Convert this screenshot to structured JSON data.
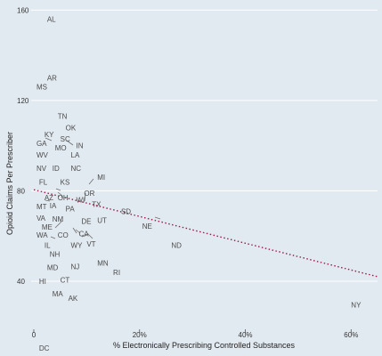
{
  "chart_data": {
    "type": "scatter",
    "title": "",
    "xlabel": "% Electronically Prescribing Controlled Substances",
    "ylabel": "Opioid Claims Per Prescriber",
    "xlim": [
      -0.5,
      65.0
    ],
    "ylim": [
      19.5,
      162.5
    ],
    "x_ticks": [
      0,
      20,
      40,
      60
    ],
    "x_tick_labels": [
      "0",
      "20%",
      "40%",
      "60%"
    ],
    "y_ticks": [
      40,
      80,
      120,
      160
    ],
    "y_tick_labels": [
      "40",
      "80",
      "120",
      "160"
    ],
    "grid": "horizontal",
    "colors": {
      "background": "#e2eaf1",
      "grid": "#ffffff",
      "points": "#4a4a4a",
      "trend": "#9b1b4a"
    },
    "trend_line": {
      "style": "dotted",
      "from": [
        0,
        80.5
      ],
      "to": [
        65,
        42
      ]
    },
    "points": [
      {
        "label": "AL",
        "x": 2.5,
        "y": 156
      },
      {
        "label": "AR",
        "x": 2.5,
        "y": 130
      },
      {
        "label": "MS",
        "x": 0.5,
        "y": 126
      },
      {
        "label": "TN",
        "x": 4.5,
        "y": 113
      },
      {
        "label": "OK",
        "x": 6,
        "y": 108
      },
      {
        "label": "KY",
        "x": 2,
        "y": 105
      },
      {
        "label": "SC",
        "x": 5,
        "y": 103
      },
      {
        "label": "GA",
        "x": 0.5,
        "y": 101
      },
      {
        "label": "IN",
        "x": 8,
        "y": 100
      },
      {
        "label": "MO",
        "x": 4,
        "y": 99
      },
      {
        "label": "WV",
        "x": 0.5,
        "y": 96
      },
      {
        "label": "LA",
        "x": 7,
        "y": 96
      },
      {
        "label": "NV",
        "x": 0.5,
        "y": 90
      },
      {
        "label": "ID",
        "x": 3.5,
        "y": 90
      },
      {
        "label": "NC",
        "x": 7,
        "y": 90
      },
      {
        "label": "MI",
        "x": 12,
        "y": 86
      },
      {
        "label": "FL",
        "x": 1,
        "y": 84
      },
      {
        "label": "KS",
        "x": 5,
        "y": 84
      },
      {
        "label": "OR",
        "x": 9.5,
        "y": 79
      },
      {
        "label": "AZ",
        "x": 2,
        "y": 77
      },
      {
        "label": "OH",
        "x": 4.5,
        "y": 77
      },
      {
        "label": "WI",
        "x": 8,
        "y": 76
      },
      {
        "label": "TX",
        "x": 11,
        "y": 74
      },
      {
        "label": "MT",
        "x": 0.5,
        "y": 73
      },
      {
        "label": "IA",
        "x": 3,
        "y": 73.5
      },
      {
        "label": "PA",
        "x": 6,
        "y": 72
      },
      {
        "label": "SD",
        "x": 16.5,
        "y": 71
      },
      {
        "label": "VA",
        "x": 0.5,
        "y": 68
      },
      {
        "label": "NM",
        "x": 3.5,
        "y": 67.5
      },
      {
        "label": "UT",
        "x": 12,
        "y": 67
      },
      {
        "label": "DE",
        "x": 9,
        "y": 66.5
      },
      {
        "label": "NE",
        "x": 20.5,
        "y": 64.5
      },
      {
        "label": "ME",
        "x": 1.5,
        "y": 64
      },
      {
        "label": "WA",
        "x": 0.5,
        "y": 60.5
      },
      {
        "label": "CO",
        "x": 4.5,
        "y": 60.5
      },
      {
        "label": "CA",
        "x": 8.5,
        "y": 61
      },
      {
        "label": "ND",
        "x": 26,
        "y": 56
      },
      {
        "label": "IL",
        "x": 2,
        "y": 56
      },
      {
        "label": "WY",
        "x": 7,
        "y": 56
      },
      {
        "label": "VT",
        "x": 10,
        "y": 56.5
      },
      {
        "label": "NH",
        "x": 3,
        "y": 52
      },
      {
        "label": "MN",
        "x": 12,
        "y": 48
      },
      {
        "label": "MD",
        "x": 2.5,
        "y": 46
      },
      {
        "label": "NJ",
        "x": 7,
        "y": 46.5
      },
      {
        "label": "RI",
        "x": 15,
        "y": 44
      },
      {
        "label": "HI",
        "x": 1,
        "y": 40
      },
      {
        "label": "CT",
        "x": 5,
        "y": 40.5
      },
      {
        "label": "MA",
        "x": 3.5,
        "y": 34.5
      },
      {
        "label": "AK",
        "x": 6.5,
        "y": 32.5
      },
      {
        "label": "NY",
        "x": 60,
        "y": 29.5
      },
      {
        "label": "DC",
        "x": 1,
        "y": 10.5
      }
    ]
  }
}
